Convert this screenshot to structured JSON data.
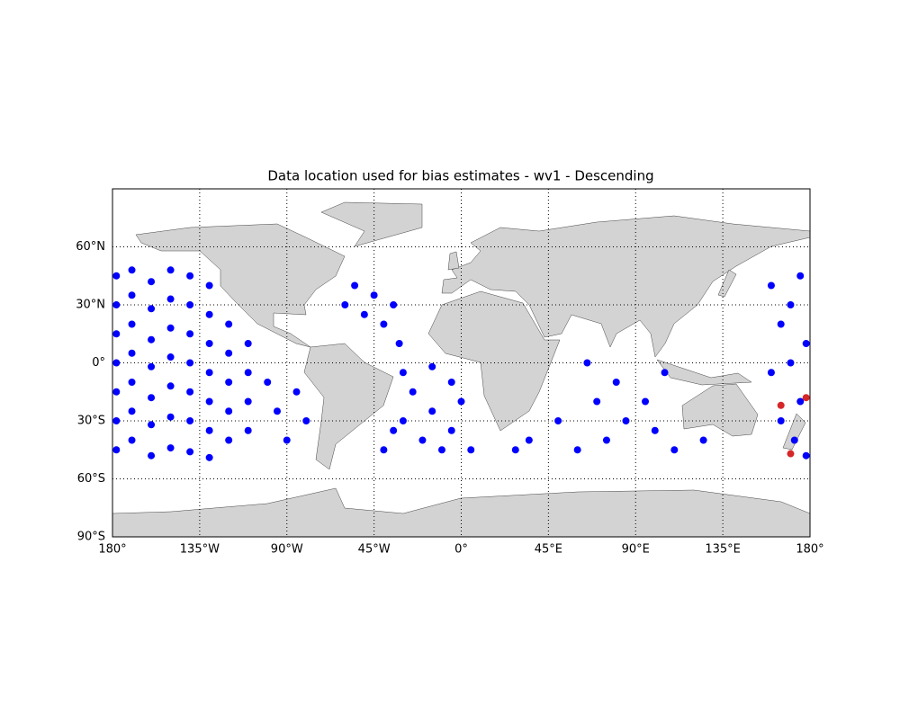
{
  "chart_data": {
    "type": "scatter",
    "title": "Data location used for bias estimates - wv1 - Descending",
    "xlim": [
      -180,
      180
    ],
    "ylim": [
      -90,
      90
    ],
    "xticks": [
      {
        "value": -180,
        "label": "180°"
      },
      {
        "value": -135,
        "label": "135°W"
      },
      {
        "value": -90,
        "label": "90°W"
      },
      {
        "value": -45,
        "label": "45°W"
      },
      {
        "value": 0,
        "label": "0°"
      },
      {
        "value": 45,
        "label": "45°E"
      },
      {
        "value": 90,
        "label": "90°E"
      },
      {
        "value": 135,
        "label": "135°E"
      },
      {
        "value": 180,
        "label": "180°"
      }
    ],
    "yticks": [
      {
        "value": -90,
        "label": "90°S"
      },
      {
        "value": -60,
        "label": "60°S"
      },
      {
        "value": -30,
        "label": "30°S"
      },
      {
        "value": 0,
        "label": "0°"
      },
      {
        "value": 30,
        "label": "30°N"
      },
      {
        "value": 60,
        "label": "60°N"
      }
    ],
    "grid": true,
    "series": [
      {
        "color": "#0000ff",
        "x": [
          -178,
          -178,
          -178,
          -178,
          -178,
          -178,
          -178,
          -170,
          -170,
          -170,
          -170,
          -170,
          -170,
          -170,
          -160,
          -160,
          -160,
          -160,
          -160,
          -160,
          -160,
          -150,
          -150,
          -150,
          -150,
          -150,
          -150,
          -150,
          -140,
          -140,
          -140,
          -140,
          -140,
          -140,
          -140,
          -130,
          -130,
          -130,
          -130,
          -130,
          -130,
          -130,
          -120,
          -120,
          -120,
          -120,
          -120,
          -110,
          -110,
          -110,
          -110,
          -100,
          -95,
          -90,
          -85,
          -80,
          -60,
          -55,
          -50,
          -45,
          -40,
          -35,
          -32,
          -30,
          -30,
          -25,
          -20,
          -15,
          -15,
          -10,
          -5,
          -5,
          0,
          5,
          -40,
          -35,
          28,
          35,
          50,
          60,
          65,
          70,
          75,
          80,
          85,
          95,
          100,
          105,
          110,
          125,
          160,
          165,
          170,
          170,
          175,
          178,
          160,
          165,
          172,
          178,
          175
        ],
        "y": [
          45,
          30,
          15,
          0,
          -15,
          -30,
          -45,
          48,
          35,
          20,
          5,
          -10,
          -25,
          -40,
          42,
          28,
          12,
          -2,
          -18,
          -32,
          -48,
          48,
          33,
          18,
          3,
          -12,
          -28,
          -44,
          45,
          30,
          15,
          0,
          -15,
          -30,
          -46,
          40,
          25,
          10,
          -5,
          -20,
          -35,
          -49,
          20,
          5,
          -10,
          -25,
          -40,
          10,
          -5,
          -20,
          -35,
          -10,
          -25,
          -40,
          -15,
          -30,
          30,
          40,
          25,
          35,
          20,
          30,
          10,
          -5,
          -30,
          -15,
          -40,
          -2,
          -25,
          -45,
          -10,
          -35,
          -20,
          -45,
          -45,
          -35,
          -45,
          -40,
          -30,
          -45,
          0,
          -20,
          -40,
          -10,
          -30,
          -20,
          -35,
          -5,
          -45,
          -40,
          40,
          20,
          0,
          30,
          45,
          10,
          -5,
          -30,
          -40,
          -48,
          -20
        ]
      },
      {
        "color": "#d62728",
        "x": [
          170,
          178,
          165
        ],
        "y": [
          -47,
          -18,
          -22
        ]
      }
    ]
  }
}
